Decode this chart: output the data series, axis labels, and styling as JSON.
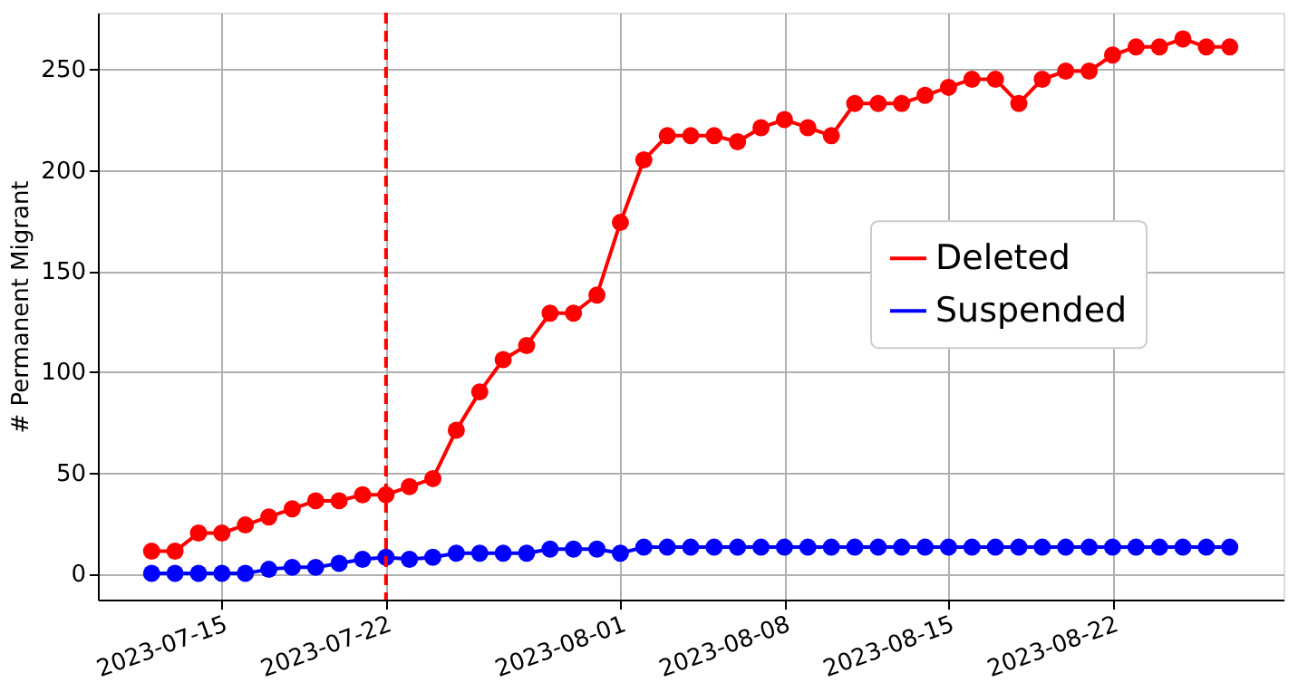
{
  "chart_data": {
    "type": "line",
    "ylabel": "# Permanent Migrant",
    "x": [
      "2023-07-12",
      "2023-07-13",
      "2023-07-14",
      "2023-07-15",
      "2023-07-16",
      "2023-07-17",
      "2023-07-18",
      "2023-07-19",
      "2023-07-20",
      "2023-07-21",
      "2023-07-22",
      "2023-07-23",
      "2023-07-24",
      "2023-07-25",
      "2023-07-26",
      "2023-07-27",
      "2023-07-28",
      "2023-07-29",
      "2023-07-30",
      "2023-07-31",
      "2023-08-01",
      "2023-08-02",
      "2023-08-03",
      "2023-08-04",
      "2023-08-05",
      "2023-08-06",
      "2023-08-07",
      "2023-08-08",
      "2023-08-09",
      "2023-08-10",
      "2023-08-11",
      "2023-08-12",
      "2023-08-13",
      "2023-08-14",
      "2023-08-15",
      "2023-08-16",
      "2023-08-17",
      "2023-08-18",
      "2023-08-19",
      "2023-08-20",
      "2023-08-21",
      "2023-08-22",
      "2023-08-23",
      "2023-08-24",
      "2023-08-25",
      "2023-08-26",
      "2023-08-27"
    ],
    "series": [
      {
        "name": "Deleted",
        "color": "#ff0000",
        "values": [
          11,
          11,
          20,
          20,
          24,
          28,
          32,
          36,
          36,
          39,
          39,
          43,
          47,
          71,
          90,
          106,
          113,
          129,
          129,
          138,
          174,
          205,
          217,
          217,
          217,
          214,
          221,
          225,
          221,
          217,
          233,
          233,
          233,
          237,
          241,
          245,
          245,
          233,
          245,
          249,
          249,
          257,
          261,
          261,
          265,
          261,
          261
        ]
      },
      {
        "name": "Suspended",
        "color": "#0000ff",
        "values": [
          0,
          0,
          0,
          0,
          0,
          2,
          3,
          3,
          5,
          7,
          8,
          7,
          8,
          10,
          10,
          10,
          10,
          12,
          12,
          12,
          10,
          13,
          13,
          13,
          13,
          13,
          13,
          13,
          13,
          13,
          13,
          13,
          13,
          13,
          13,
          13,
          13,
          13,
          13,
          13,
          13,
          13,
          13,
          13,
          13,
          13,
          13
        ]
      }
    ],
    "xlim": [
      "2023-07-09T17:00",
      "2023-08-29T07:00"
    ],
    "xticks": [
      "2023-07-15",
      "2023-07-22",
      "2023-08-01",
      "2023-08-08",
      "2023-08-15",
      "2023-08-22"
    ],
    "ylim": [
      -13,
      278
    ],
    "yticks": [
      0,
      50,
      100,
      150,
      200,
      250
    ],
    "ref_lines": [
      {
        "axis": "x",
        "value": "2023-07-22",
        "color": "#ff0000",
        "line_style": "dashed"
      }
    ],
    "grid": true,
    "legend": "right",
    "marker": "circle",
    "line_style": "solid"
  }
}
